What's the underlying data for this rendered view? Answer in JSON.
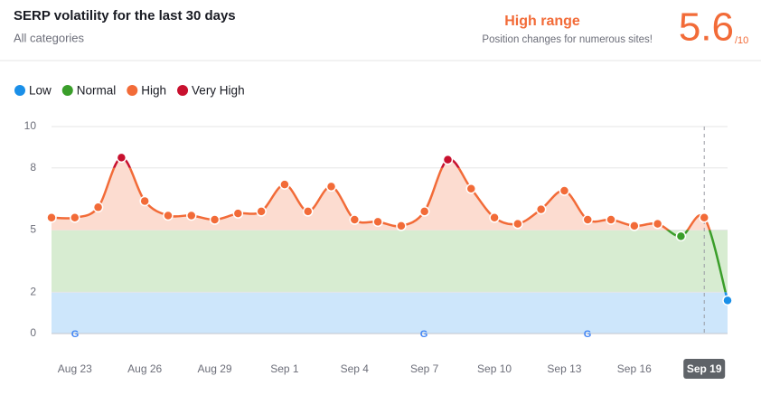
{
  "chart_data": {
    "type": "line",
    "title": "SERP volatility for the last 30 days",
    "subtitle": "All categories",
    "range_title": "High range",
    "range_note": "Position changes for numerous sites!",
    "score": 5.6,
    "score_suffix": "/10",
    "categories": [
      null,
      "Aug 23",
      null,
      null,
      "Aug 26",
      null,
      null,
      "Aug 29",
      null,
      null,
      "Sep 1",
      null,
      null,
      "Sep 4",
      null,
      null,
      "Sep 7",
      null,
      null,
      "Sep 10",
      null,
      null,
      "Sep 13",
      null,
      null,
      "Sep 16",
      null,
      null,
      "Sep 19",
      null
    ],
    "values": [
      5.6,
      5.6,
      6.1,
      8.5,
      6.4,
      5.7,
      5.7,
      5.5,
      5.8,
      5.9,
      7.2,
      5.9,
      7.1,
      5.5,
      5.4,
      5.2,
      5.9,
      8.4,
      7.0,
      5.6,
      5.3,
      6.0,
      6.9,
      5.5,
      5.5,
      5.2,
      5.3,
      4.7,
      5.6,
      1.6
    ],
    "ranges": [
      {
        "name": "Low",
        "color": "#1a8fe8",
        "min": 0,
        "max": 2
      },
      {
        "name": "Normal",
        "color": "#3a9e2a",
        "min": 2,
        "max": 5
      },
      {
        "name": "High",
        "color": "#f26b38",
        "min": 5,
        "max": 8
      },
      {
        "name": "Very High",
        "color": "#c8102e",
        "min": 8,
        "max": 10
      }
    ],
    "ylim": [
      0,
      10
    ],
    "yticks": [
      0,
      2,
      5,
      8,
      10
    ],
    "grid": true
  }
}
